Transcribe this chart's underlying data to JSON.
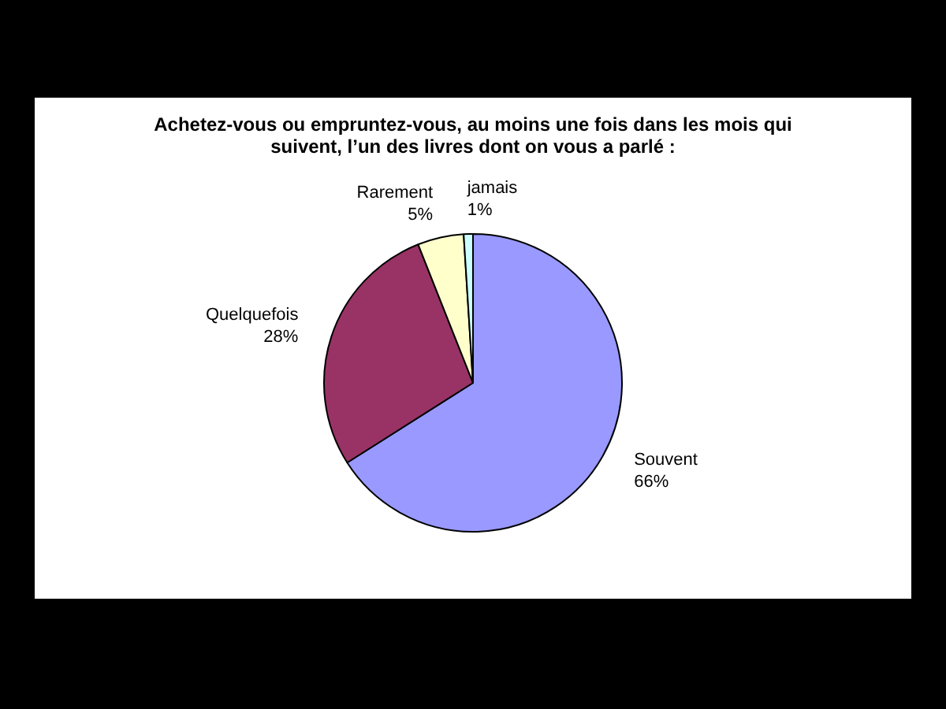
{
  "chart_data": {
    "type": "pie",
    "title": "Achetez-vous ou empruntez-vous, au moins une fois dans les mois qui suivent, l’un des livres dont on vous a parlé :",
    "categories": [
      "Souvent",
      "Quelquefois",
      "Rarement",
      "jamais"
    ],
    "values": [
      66,
      28,
      5,
      1
    ],
    "colors": [
      "#9999ff",
      "#993366",
      "#ffffcc",
      "#ccffff"
    ],
    "value_labels": [
      "66%",
      "28%",
      "5%",
      "1%"
    ],
    "legend": false
  }
}
